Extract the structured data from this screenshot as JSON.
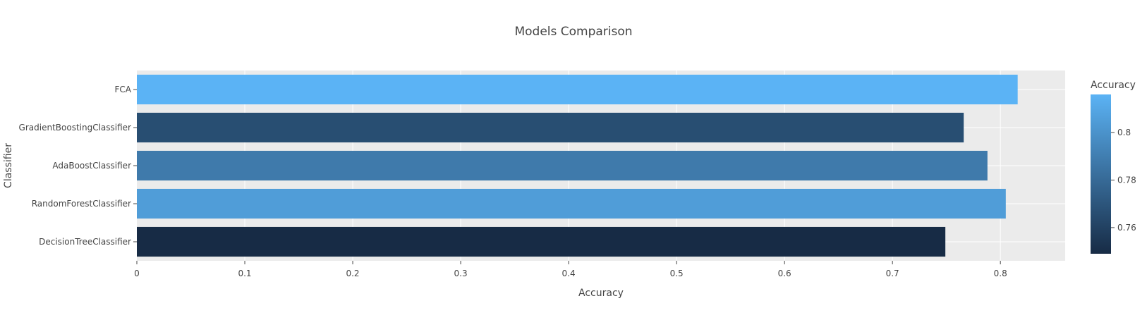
{
  "chart_data": {
    "type": "bar",
    "orientation": "horizontal",
    "title": "Models Comparison",
    "xlabel": "Accuracy",
    "ylabel": "Classifier",
    "categories": [
      "FCA",
      "GradientBoostingClassifier",
      "AdaBoostClassifier",
      "RandomForestClassifier",
      "DecisionTreeClassifier"
    ],
    "values": [
      0.816,
      0.766,
      0.788,
      0.805,
      0.749
    ],
    "xlim": [
      0,
      0.86
    ],
    "xticks": [
      0,
      0.1,
      0.2,
      0.3,
      0.4,
      0.5,
      0.6,
      0.7,
      0.8
    ],
    "xtick_labels": [
      "0",
      "0.1",
      "0.2",
      "0.3",
      "0.4",
      "0.5",
      "0.6",
      "0.7",
      "0.8"
    ],
    "grid": true,
    "colorscale": {
      "title": "Accuracy",
      "min": 0.749,
      "max": 0.816,
      "low_color": "#172b45",
      "high_color": "#5bb3f5",
      "ticks": [
        0.76,
        0.78,
        0.8
      ],
      "tick_labels": [
        "0.76",
        "0.78",
        "0.8"
      ]
    },
    "colors": {
      "plot_background": "#ebebeb",
      "grid": "#ffffff",
      "text": "#444444",
      "title": "#444444"
    }
  }
}
